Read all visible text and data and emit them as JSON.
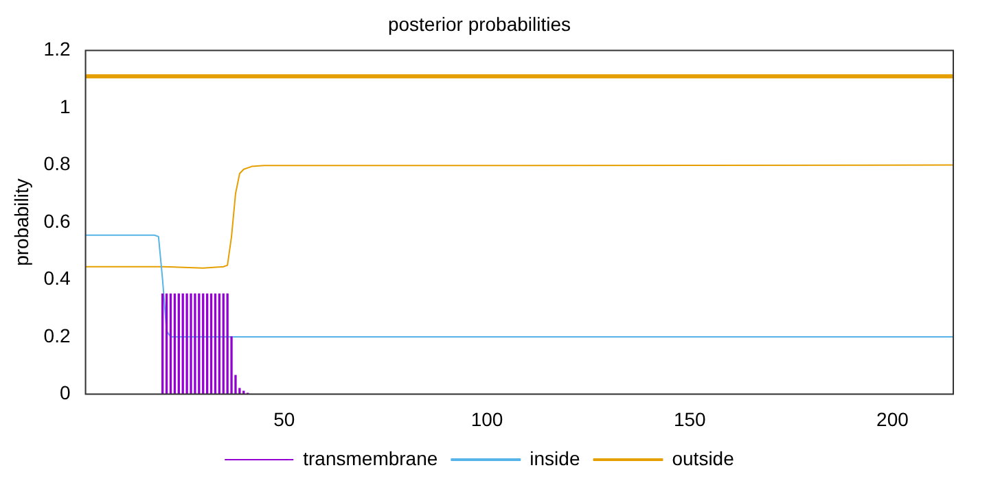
{
  "chart_data": {
    "type": "line",
    "title": "posterior probabilities",
    "ylabel": "probability",
    "xlim": [
      1,
      215
    ],
    "xticks": [
      50,
      100,
      150,
      200
    ],
    "ylim": [
      0,
      1.2
    ],
    "yticks": [
      0,
      0.2,
      0.4,
      0.6,
      0.8,
      1,
      1.2
    ],
    "legend": "bottom",
    "grid": false,
    "marker": "none",
    "series": [
      {
        "name": "transmembrane",
        "type": "bar",
        "color": "#9400d3",
        "x": [
          20,
          21,
          22,
          23,
          24,
          25,
          26,
          27,
          28,
          29,
          30,
          31,
          32,
          33,
          34,
          35,
          36,
          37,
          38,
          39,
          40,
          41
        ],
        "values": [
          0.35,
          0.35,
          0.35,
          0.35,
          0.35,
          0.35,
          0.35,
          0.35,
          0.35,
          0.35,
          0.35,
          0.35,
          0.35,
          0.35,
          0.35,
          0.35,
          0.35,
          0.2,
          0.065,
          0.02,
          0.01,
          0.003
        ]
      },
      {
        "name": "inside",
        "color": "#56b4e9",
        "x": [
          1,
          18,
          19,
          20,
          21,
          22,
          40,
          100,
          120,
          215
        ],
        "values": [
          0.555,
          0.555,
          0.55,
          0.4,
          0.22,
          0.2,
          0.2,
          0.2,
          0.2,
          0.2
        ]
      },
      {
        "name": "outside",
        "color": "#e69f00",
        "x": [
          1,
          20,
          30,
          35,
          36,
          37,
          38,
          39,
          40,
          42,
          45,
          100,
          215
        ],
        "values": [
          0.445,
          0.445,
          0.44,
          0.445,
          0.45,
          0.55,
          0.7,
          0.77,
          0.785,
          0.795,
          0.798,
          0.798,
          0.8
        ]
      }
    ],
    "ref_lines": [
      {
        "axis": "y",
        "value": 1.11,
        "color": "#e69f00"
      }
    ]
  }
}
